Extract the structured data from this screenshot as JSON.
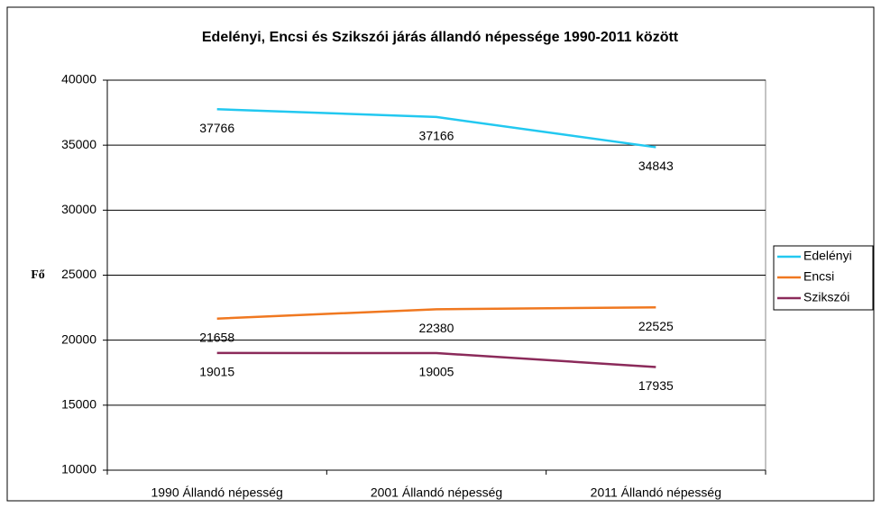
{
  "chart_data": {
    "type": "line",
    "title": "Edelényi, Encsi és Szikszói járás állandó népessége 1990-2011 között",
    "y_label": "Fő",
    "categories": [
      "1990 Állandó népesség",
      "2001 Állandó népesség",
      "2011 Állandó népesség"
    ],
    "series": [
      {
        "name": "Edelényi",
        "color": "#22c8f0",
        "values": [
          37766,
          37166,
          34843
        ]
      },
      {
        "name": "Encsi",
        "color": "#f07820",
        "values": [
          21658,
          22380,
          22525
        ]
      },
      {
        "name": "Szikszói",
        "color": "#8b2a5a",
        "values": [
          19015,
          19005,
          17935
        ]
      }
    ],
    "ylim": [
      10000,
      40000
    ],
    "yticks": [
      10000,
      15000,
      20000,
      25000,
      30000,
      35000,
      40000
    ],
    "grid": true,
    "legend": "right"
  }
}
